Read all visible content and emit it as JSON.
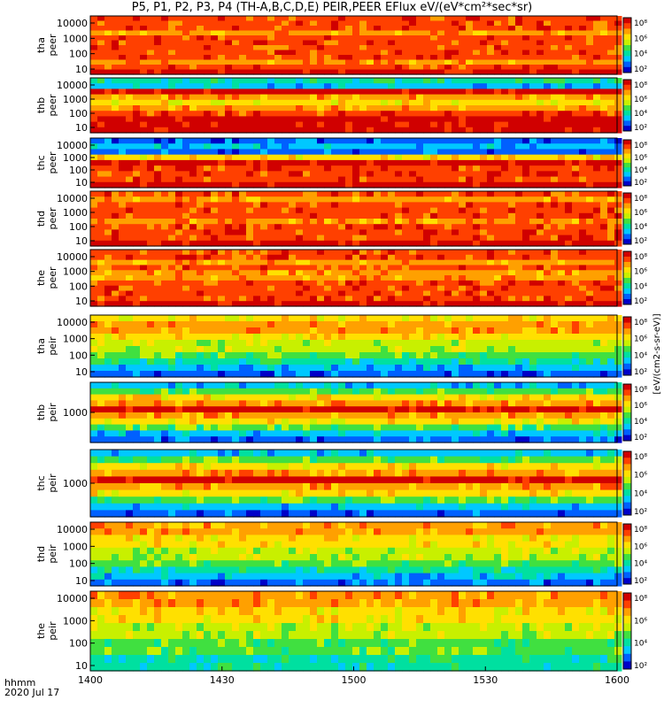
{
  "title": "P5, P1, P2, P3, P4 (TH-A,B,C,D,E) PEIR,PEER EFlux eV/(eV*cm²*sec*sr)",
  "footer": {
    "format_label": "hhmm",
    "date_label": "2020 Jul 17"
  },
  "colorbar": {
    "tick_labels": [
      "10⁸",
      "10⁶",
      "10⁴",
      "10²"
    ],
    "unit_label": "[eV/(cm2-s-sr-eV)]",
    "colors": [
      "#0000c8",
      "#0060ff",
      "#00c8ff",
      "#00e0a0",
      "#40e040",
      "#c8f000",
      "#ffe000",
      "#ffa000",
      "#ff4000",
      "#d00000"
    ]
  },
  "chart_data": {
    "type": "heatmap",
    "title": "P5, P1, P2, P3, P4 (TH-A,B,C,D,E) PEIR,PEER EFlux eV/(eV*cm²*sec*sr)",
    "xlabel": "hhmm",
    "x_ticks": [
      "1400",
      "1430",
      "1500",
      "1530",
      "1600"
    ],
    "x_range": [
      "1400",
      "1600"
    ],
    "date": "2020 Jul 17",
    "color_scale": "log",
    "panels": [
      {
        "name": "tha peer",
        "label_line1": "tha",
        "label_line2": "peer",
        "y_ticks": [
          "10000",
          "1000",
          "100",
          "10"
        ],
        "y_scale": "log"
      },
      {
        "name": "thb peer",
        "label_line1": "thb",
        "label_line2": "peer",
        "y_ticks": [
          "10000",
          "1000",
          "100",
          "10"
        ],
        "y_scale": "log"
      },
      {
        "name": "thc peer",
        "label_line1": "thc",
        "label_line2": "peer",
        "y_ticks": [
          "10000",
          "1000",
          "100",
          "10"
        ],
        "y_scale": "log"
      },
      {
        "name": "thd peer",
        "label_line1": "thd",
        "label_line2": "peer",
        "y_ticks": [
          "10000",
          "1000",
          "100",
          "10"
        ],
        "y_scale": "log"
      },
      {
        "name": "the peer",
        "label_line1": "the",
        "label_line2": "peer",
        "y_ticks": [
          "10000",
          "1000",
          "100",
          "10"
        ],
        "y_scale": "log"
      },
      {
        "name": "tha peir",
        "label_line1": "tha",
        "label_line2": "peir",
        "y_ticks": [
          "10000",
          "1000",
          "100",
          "10"
        ],
        "y_scale": "log"
      },
      {
        "name": "thb peir",
        "label_line1": "thb",
        "label_line2": "peir",
        "y_ticks": [
          "1000"
        ],
        "y_scale": "log"
      },
      {
        "name": "thc peir",
        "label_line1": "thc",
        "label_line2": "peir",
        "y_ticks": [
          "1000"
        ],
        "y_scale": "log"
      },
      {
        "name": "thd peir",
        "label_line1": "thd",
        "label_line2": "peir",
        "y_ticks": [
          "10000",
          "1000",
          "100",
          "10"
        ],
        "y_scale": "log"
      },
      {
        "name": "the peir",
        "label_line1": "the",
        "label_line2": "peir",
        "y_ticks": [
          "10000",
          "1000",
          "100",
          "10"
        ],
        "y_scale": "log"
      }
    ]
  }
}
